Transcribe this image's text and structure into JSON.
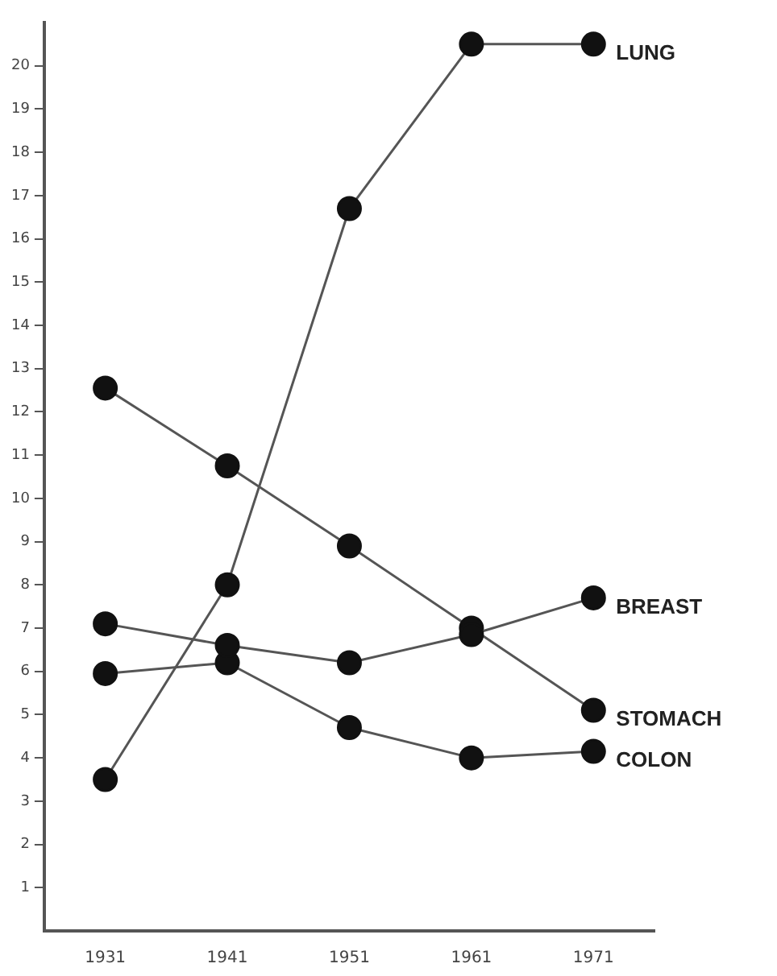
{
  "chart_data": {
    "type": "line",
    "categories": [
      "1931",
      "1941",
      "1951",
      "1961",
      "1971"
    ],
    "series": [
      {
        "name": "LUNG",
        "color": "#555555",
        "values": [
          3.5,
          8.0,
          16.7,
          20.5,
          20.5
        ]
      },
      {
        "name": "BREAST",
        "color": "#555555",
        "values": [
          7.1,
          6.6,
          6.2,
          6.85,
          7.7
        ]
      },
      {
        "name": "STOMACH",
        "color": "#555555",
        "values": [
          12.55,
          10.75,
          8.9,
          7.0,
          5.1
        ]
      },
      {
        "name": "COLON",
        "color": "#555555",
        "values": [
          5.95,
          6.2,
          4.7,
          4.0,
          4.15
        ]
      }
    ],
    "ylim": [
      0,
      21
    ],
    "yticks": [
      1,
      2,
      3,
      4,
      5,
      6,
      7,
      8,
      9,
      10,
      11,
      12,
      13,
      14,
      15,
      16,
      17,
      18,
      19,
      20
    ],
    "grid": false,
    "legend": false,
    "marker": "circle",
    "line_style": "solid"
  }
}
